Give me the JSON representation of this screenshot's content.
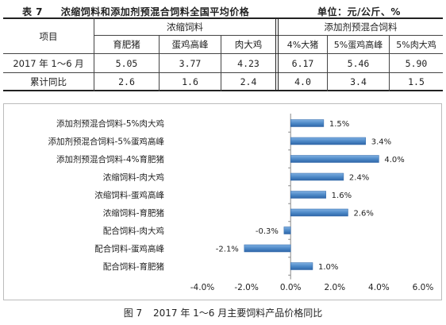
{
  "table": {
    "number": "表 7",
    "title": "浓缩饲料和添加剂预混合饲料全国平均价格",
    "unit": "单位：元/公斤、%",
    "col_item": "项目",
    "group_concentrate": "浓缩饲料",
    "group_premix": "添加剂预混合饲料",
    "columns": [
      "育肥猪",
      "蛋鸡高峰",
      "肉大鸡",
      "4%大猪",
      "5%蛋鸡高峰",
      "5%肉大鸡"
    ],
    "rows": [
      {
        "label": "2017 年 1～6 月",
        "values": [
          "5.05",
          "3.77",
          "4.23",
          "6.17",
          "5.46",
          "5.90"
        ]
      },
      {
        "label": "累计同比",
        "values": [
          "2.6",
          "1.6",
          "2.4",
          "4.0",
          "3.4",
          "1.5"
        ]
      }
    ]
  },
  "chart_data": {
    "type": "bar",
    "orientation": "horizontal",
    "categories": [
      "添加剂预混合饲料-5%肉大鸡",
      "添加剂预混合饲料-5%蛋鸡高峰",
      "添加剂预混合饲料-4%育肥猪",
      "浓缩饲料-肉大鸡",
      "浓缩饲料-蛋鸡高峰",
      "浓缩饲料-育肥猪",
      "配合饲料-肉大鸡",
      "配合饲料-蛋鸡高峰",
      "配合饲料-育肥猪"
    ],
    "values": [
      1.5,
      3.4,
      4.0,
      2.4,
      1.6,
      2.6,
      -0.3,
      -2.1,
      1.0
    ],
    "value_labels": [
      "1.5%",
      "3.4%",
      "4.0%",
      "2.4%",
      "1.6%",
      "2.6%",
      "-0.3%",
      "-2.1%",
      "1.0%"
    ],
    "xlim": [
      -4.0,
      6.0
    ],
    "xticks": [
      -4.0,
      -2.0,
      0.0,
      2.0,
      4.0,
      6.0
    ],
    "xtick_labels": [
      "-4.0%",
      "-2.0%",
      "0.0%",
      "2.0%",
      "4.0%",
      "6.0%"
    ],
    "grid": false,
    "bar_color": "#4a86c5",
    "caption_number": "图 7",
    "caption": "2017 年 1～6 月主要饲料产品价格同比"
  }
}
